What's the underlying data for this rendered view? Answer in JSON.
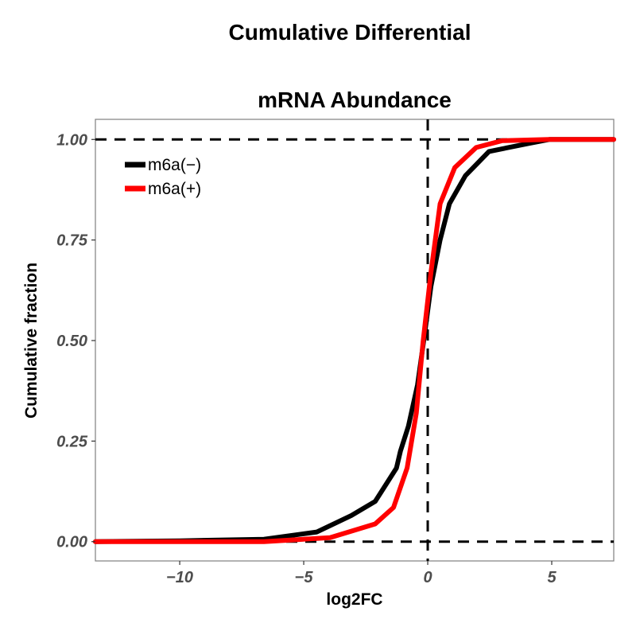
{
  "chart_data": {
    "type": "line",
    "title": [
      "Cumulative Differential",
      "mRNA Abundance"
    ],
    "xlabel": "log2FC",
    "ylabel": "Cumulative fraction",
    "xlim": [
      -13.4,
      7.5
    ],
    "ylim": [
      -0.048,
      1.05
    ],
    "xticks": [
      -10,
      -5,
      0,
      5
    ],
    "xtick_labels": [
      "−10",
      "−5",
      "0",
      "5"
    ],
    "yticks": [
      0,
      0.25,
      0.5,
      0.75,
      1.0
    ],
    "ytick_labels": [
      "0.00",
      "0.25",
      "0.50",
      "0.75",
      "1.00"
    ],
    "grid": false,
    "reference_lines": {
      "h": [
        0,
        1
      ],
      "v": [
        0
      ],
      "style": "dashed"
    },
    "legend": "top-left",
    "series": [
      {
        "name": "m6a(−)",
        "color": "#000000",
        "x": [
          -13.4,
          -10,
          -6.6,
          -4.47,
          -3.08,
          -2.12,
          -1.26,
          -1.1,
          -0.78,
          -0.41,
          -0.14,
          0.13,
          0.5,
          0.875,
          1.52,
          2.47,
          4.07,
          4.9,
          7.5
        ],
        "y": [
          0.0,
          0.002,
          0.006,
          0.024,
          0.065,
          0.1,
          0.183,
          0.225,
          0.287,
          0.39,
          0.51,
          0.635,
          0.75,
          0.84,
          0.91,
          0.97,
          0.99,
          1.0,
          1.0
        ]
      },
      {
        "name": "m6a(+)",
        "color": "#ff0000",
        "x": [
          -13.4,
          -6.6,
          -3.94,
          -2.12,
          -1.38,
          -0.83,
          -0.46,
          -0.19,
          0.13,
          0.5,
          1.09,
          1.95,
          3.0,
          4.9,
          7.5
        ],
        "y": [
          0.0,
          0.0,
          0.01,
          0.044,
          0.085,
          0.183,
          0.32,
          0.496,
          0.67,
          0.84,
          0.93,
          0.98,
          0.997,
          1.0,
          1.0
        ]
      }
    ]
  }
}
